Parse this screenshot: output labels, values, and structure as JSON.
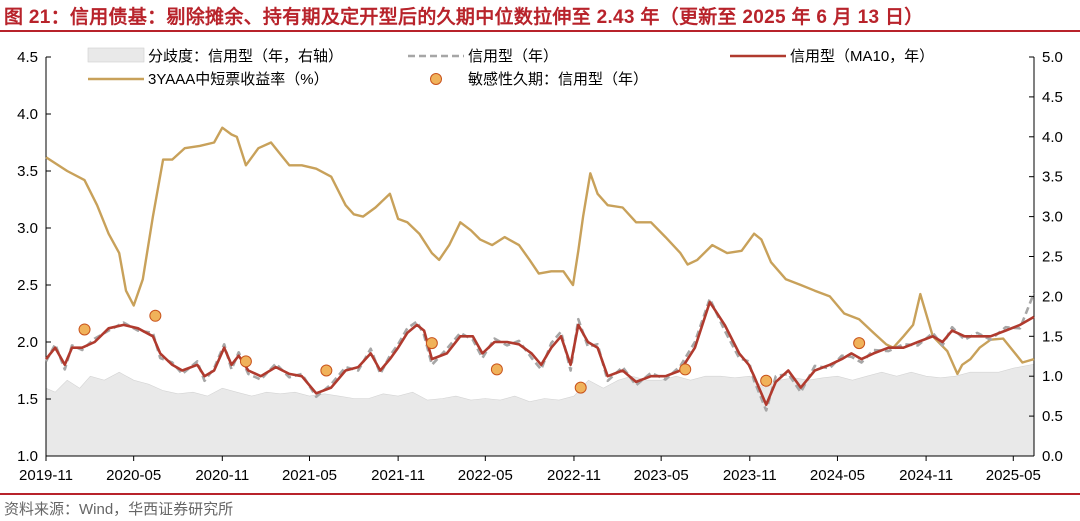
{
  "title": "图 21：信用债基：剔除摊余、持有期及定开型后的久期中位数拉伸至 2.43 年（更新至 2025 年 6 月 13 日）",
  "source": "资料来源：Wind，华西证券研究所",
  "colors": {
    "accent": "#b8232b",
    "area_fill": "#e9e9e9",
    "credit_dash": "#a6a6a6",
    "ma10": "#b03a2e",
    "yield": "#c8a15a",
    "marker_fill": "#f0b25a",
    "marker_stroke": "#c9541d"
  },
  "chart_data": {
    "type": "line",
    "x_ticks": [
      "2019-11",
      "2020-05",
      "2020-11",
      "2021-05",
      "2021-11",
      "2022-05",
      "2022-11",
      "2023-05",
      "2023-11",
      "2024-05",
      "2024-11",
      "2025-05"
    ],
    "xlim": [
      "2019-11-01",
      "2025-06-13"
    ],
    "y_left": {
      "min": 1.0,
      "max": 4.5,
      "ticks": [
        "1.0",
        "1.5",
        "2.0",
        "2.5",
        "3.0",
        "3.5",
        "4.0",
        "4.5"
      ]
    },
    "y_right": {
      "min": 0.0,
      "max": 5.0,
      "ticks": [
        "0.0",
        "0.5",
        "1.0",
        "1.5",
        "2.0",
        "2.5",
        "3.0",
        "3.5",
        "4.0",
        "4.5",
        "5.0"
      ]
    },
    "legend": [
      {
        "name": "分歧度：信用型（年，右轴）",
        "style": "area"
      },
      {
        "name": "信用型（年）",
        "style": "dashed"
      },
      {
        "name": "信用型（MA10，年）",
        "style": "line"
      },
      {
        "name": "3YAAA中短票收益率（%）",
        "style": "line"
      },
      {
        "name": "敏感性久期：信用型（年）",
        "style": "marker"
      }
    ],
    "series": [
      {
        "name": "3YAAA中短票收益率（%）",
        "axis": "left",
        "x": [
          "2019-11-01",
          "2019-12-15",
          "2020-01-20",
          "2020-02-15",
          "2020-03-10",
          "2020-04-01",
          "2020-04-15",
          "2020-05-01",
          "2020-05-20",
          "2020-06-10",
          "2020-07-01",
          "2020-07-20",
          "2020-08-15",
          "2020-09-15",
          "2020-10-15",
          "2020-11-01",
          "2020-11-20",
          "2020-12-01",
          "2020-12-20",
          "2021-01-15",
          "2021-02-10",
          "2021-03-01",
          "2021-03-20",
          "2021-04-15",
          "2021-05-15",
          "2021-06-15",
          "2021-07-15",
          "2021-08-01",
          "2021-08-20",
          "2021-09-15",
          "2021-10-15",
          "2021-11-01",
          "2021-11-20",
          "2021-12-15",
          "2022-01-10",
          "2022-01-25",
          "2022-02-15",
          "2022-03-10",
          "2022-04-01",
          "2022-04-20",
          "2022-05-15",
          "2022-06-10",
          "2022-07-10",
          "2022-08-01",
          "2022-08-20",
          "2022-09-15",
          "2022-10-10",
          "2022-10-30",
          "2022-11-10",
          "2022-11-20",
          "2022-12-05",
          "2022-12-20",
          "2023-01-10",
          "2023-02-10",
          "2023-03-10",
          "2023-04-10",
          "2023-05-10",
          "2023-06-10",
          "2023-06-25",
          "2023-07-15",
          "2023-08-15",
          "2023-09-15",
          "2023-10-15",
          "2023-11-10",
          "2023-11-25",
          "2023-12-15",
          "2024-01-15",
          "2024-02-15",
          "2024-03-15",
          "2024-04-15",
          "2024-05-15",
          "2024-06-15",
          "2024-07-15",
          "2024-08-10",
          "2024-08-25",
          "2024-09-15",
          "2024-10-05",
          "2024-10-20",
          "2024-11-15",
          "2024-12-15",
          "2025-01-05",
          "2025-01-15",
          "2025-02-01",
          "2025-02-20",
          "2025-03-15",
          "2025-04-10",
          "2025-05-01",
          "2025-05-20",
          "2025-06-13"
        ],
        "values": [
          3.62,
          3.5,
          3.42,
          3.2,
          2.95,
          2.78,
          2.45,
          2.32,
          2.55,
          3.1,
          3.6,
          3.6,
          3.7,
          3.72,
          3.75,
          3.88,
          3.82,
          3.8,
          3.55,
          3.7,
          3.75,
          3.65,
          3.55,
          3.55,
          3.52,
          3.45,
          3.2,
          3.12,
          3.1,
          3.18,
          3.3,
          3.08,
          3.05,
          2.95,
          2.78,
          2.72,
          2.85,
          3.05,
          2.98,
          2.9,
          2.85,
          2.92,
          2.85,
          2.72,
          2.6,
          2.62,
          2.62,
          2.5,
          2.8,
          3.1,
          3.48,
          3.3,
          3.2,
          3.18,
          3.05,
          3.05,
          2.92,
          2.78,
          2.68,
          2.72,
          2.85,
          2.78,
          2.8,
          2.95,
          2.9,
          2.7,
          2.55,
          2.5,
          2.45,
          2.4,
          2.25,
          2.2,
          2.08,
          1.98,
          1.95,
          2.05,
          2.15,
          2.42,
          2.05,
          1.92,
          1.72,
          1.8,
          1.85,
          1.95,
          2.02,
          2.03,
          1.92,
          1.82,
          1.85
        ]
      },
      {
        "name": "信用型（MA10，年）",
        "axis": "left",
        "x": [
          "2019-11-01",
          "2019-11-20",
          "2019-12-10",
          "2019-12-25",
          "2020-01-15",
          "2020-02-10",
          "2020-03-10",
          "2020-04-10",
          "2020-05-10",
          "2020-06-10",
          "2020-06-25",
          "2020-07-20",
          "2020-08-10",
          "2020-09-10",
          "2020-09-25",
          "2020-10-15",
          "2020-11-05",
          "2020-11-20",
          "2020-12-05",
          "2020-12-25",
          "2021-01-20",
          "2021-02-20",
          "2021-03-20",
          "2021-04-15",
          "2021-05-15",
          "2021-06-15",
          "2021-07-15",
          "2021-08-10",
          "2021-09-05",
          "2021-09-25",
          "2021-10-15",
          "2021-11-01",
          "2021-11-20",
          "2021-12-10",
          "2021-12-25",
          "2022-01-10",
          "2022-02-10",
          "2022-03-10",
          "2022-04-05",
          "2022-04-25",
          "2022-05-20",
          "2022-06-15",
          "2022-07-10",
          "2022-08-05",
          "2022-08-25",
          "2022-09-15",
          "2022-10-05",
          "2022-10-25",
          "2022-11-10",
          "2022-11-30",
          "2022-12-20",
          "2023-01-10",
          "2023-02-10",
          "2023-03-10",
          "2023-04-10",
          "2023-05-10",
          "2023-06-10",
          "2023-07-10",
          "2023-08-10",
          "2023-09-10",
          "2023-10-10",
          "2023-10-30",
          "2023-11-10",
          "2023-11-20",
          "2023-12-05",
          "2023-12-25",
          "2024-01-20",
          "2024-02-15",
          "2024-03-15",
          "2024-04-15",
          "2024-05-10",
          "2024-05-30",
          "2024-06-20",
          "2024-07-15",
          "2024-08-15",
          "2024-09-15",
          "2024-10-15",
          "2024-11-15",
          "2024-12-05",
          "2024-12-25",
          "2025-01-20",
          "2025-02-15",
          "2025-03-15",
          "2025-04-15",
          "2025-05-15",
          "2025-06-13"
        ],
        "values": [
          1.85,
          1.95,
          1.8,
          1.95,
          1.95,
          2.0,
          2.12,
          2.15,
          2.12,
          2.05,
          1.9,
          1.8,
          1.75,
          1.8,
          1.7,
          1.75,
          1.95,
          1.8,
          1.88,
          1.75,
          1.7,
          1.78,
          1.72,
          1.7,
          1.55,
          1.6,
          1.75,
          1.78,
          1.9,
          1.75,
          1.85,
          1.95,
          2.08,
          2.15,
          2.1,
          1.85,
          1.9,
          2.05,
          2.05,
          1.9,
          2.0,
          2.0,
          1.98,
          1.9,
          1.8,
          1.95,
          2.05,
          1.8,
          2.15,
          2.0,
          1.95,
          1.7,
          1.75,
          1.65,
          1.7,
          1.7,
          1.75,
          1.95,
          2.35,
          2.15,
          1.9,
          1.8,
          1.7,
          1.6,
          1.45,
          1.65,
          1.75,
          1.6,
          1.75,
          1.8,
          1.85,
          1.9,
          1.85,
          1.9,
          1.95,
          1.95,
          2.0,
          2.05,
          2.0,
          2.1,
          2.05,
          2.05,
          2.05,
          2.1,
          2.15,
          2.22
        ]
      },
      {
        "name": "信用型（年）",
        "axis": "left",
        "x": [
          "2019-11-01",
          "2019-11-20",
          "2019-12-10",
          "2019-12-25",
          "2020-01-15",
          "2020-02-10",
          "2020-03-10",
          "2020-04-10",
          "2020-05-10",
          "2020-06-10",
          "2020-06-25",
          "2020-07-20",
          "2020-08-10",
          "2020-09-10",
          "2020-09-25",
          "2020-10-15",
          "2020-11-05",
          "2020-11-20",
          "2020-12-05",
          "2020-12-25",
          "2021-01-20",
          "2021-02-20",
          "2021-03-20",
          "2021-04-15",
          "2021-05-15",
          "2021-06-15",
          "2021-07-15",
          "2021-08-10",
          "2021-09-05",
          "2021-09-25",
          "2021-10-15",
          "2021-11-01",
          "2021-11-20",
          "2021-12-10",
          "2021-12-25",
          "2022-01-10",
          "2022-02-10",
          "2022-03-10",
          "2022-04-05",
          "2022-04-25",
          "2022-05-20",
          "2022-06-15",
          "2022-07-10",
          "2022-08-05",
          "2022-08-25",
          "2022-09-15",
          "2022-10-05",
          "2022-10-25",
          "2022-11-10",
          "2022-11-30",
          "2022-12-20",
          "2023-01-10",
          "2023-02-10",
          "2023-03-10",
          "2023-04-10",
          "2023-05-10",
          "2023-06-10",
          "2023-07-10",
          "2023-08-10",
          "2023-09-10",
          "2023-10-10",
          "2023-10-30",
          "2023-11-10",
          "2023-11-20",
          "2023-12-05",
          "2023-12-25",
          "2024-01-20",
          "2024-02-15",
          "2024-03-15",
          "2024-04-15",
          "2024-05-10",
          "2024-05-30",
          "2024-06-20",
          "2024-07-15",
          "2024-08-15",
          "2024-09-15",
          "2024-10-15",
          "2024-11-15",
          "2024-12-05",
          "2024-12-25",
          "2025-01-20",
          "2025-02-15",
          "2025-03-15",
          "2025-04-15",
          "2025-05-15",
          "2025-06-13"
        ],
        "values": [
          1.83,
          1.98,
          1.76,
          1.97,
          1.93,
          2.03,
          2.1,
          2.17,
          2.1,
          2.08,
          1.86,
          1.82,
          1.72,
          1.83,
          1.66,
          1.77,
          1.98,
          1.76,
          1.91,
          1.72,
          1.67,
          1.81,
          1.69,
          1.72,
          1.52,
          1.63,
          1.78,
          1.75,
          1.94,
          1.72,
          1.88,
          1.98,
          2.12,
          2.18,
          2.06,
          1.8,
          1.94,
          2.08,
          2.02,
          1.86,
          2.03,
          1.97,
          2.01,
          1.86,
          1.76,
          1.99,
          2.09,
          1.75,
          2.2,
          1.96,
          1.98,
          1.66,
          1.78,
          1.62,
          1.73,
          1.67,
          1.79,
          2.0,
          2.38,
          2.1,
          1.86,
          1.83,
          1.66,
          1.56,
          1.4,
          1.7,
          1.72,
          1.56,
          1.79,
          1.77,
          1.88,
          1.87,
          1.82,
          1.93,
          1.92,
          1.98,
          1.97,
          2.08,
          1.97,
          2.13,
          2.02,
          2.08,
          2.02,
          2.13,
          2.12,
          2.43
        ]
      },
      {
        "name": "分歧度：信用型（年，右轴）",
        "axis": "right",
        "x": [
          "2019-11-01",
          "2019-11-20",
          "2019-12-15",
          "2020-01-10",
          "2020-02-01",
          "2020-03-01",
          "2020-04-01",
          "2020-05-01",
          "2020-06-01",
          "2020-07-01",
          "2020-08-01",
          "2020-09-01",
          "2020-10-01",
          "2020-11-01",
          "2020-12-01",
          "2021-01-01",
          "2021-02-01",
          "2021-03-01",
          "2021-04-01",
          "2021-05-01",
          "2021-06-01",
          "2021-07-01",
          "2021-08-01",
          "2021-09-01",
          "2021-10-01",
          "2021-11-01",
          "2021-12-01",
          "2022-01-01",
          "2022-02-01",
          "2022-03-01",
          "2022-04-01",
          "2022-05-01",
          "2022-06-01",
          "2022-07-01",
          "2022-08-01",
          "2022-09-01",
          "2022-10-01",
          "2022-11-01",
          "2022-12-01",
          "2023-01-01",
          "2023-02-01",
          "2023-03-01",
          "2023-04-01",
          "2023-05-01",
          "2023-06-01",
          "2023-07-01",
          "2023-08-01",
          "2023-09-01",
          "2023-10-01",
          "2023-11-01",
          "2023-12-01",
          "2024-01-01",
          "2024-02-01",
          "2024-03-01",
          "2024-04-01",
          "2024-05-01",
          "2024-06-01",
          "2024-07-01",
          "2024-08-01",
          "2024-09-01",
          "2024-10-01",
          "2024-11-01",
          "2024-12-01",
          "2025-01-01",
          "2025-02-01",
          "2025-03-01",
          "2025-04-01",
          "2025-05-01",
          "2025-06-13"
        ],
        "values": [
          0.85,
          0.8,
          0.95,
          0.85,
          1.0,
          0.95,
          1.05,
          0.95,
          0.9,
          0.82,
          0.78,
          0.8,
          0.75,
          0.85,
          0.8,
          0.75,
          0.8,
          0.78,
          0.8,
          0.75,
          0.78,
          0.75,
          0.72,
          0.72,
          0.78,
          0.75,
          0.8,
          0.7,
          0.72,
          0.75,
          0.7,
          0.72,
          0.7,
          0.75,
          0.68,
          0.72,
          0.7,
          0.75,
          0.95,
          0.85,
          0.95,
          1.0,
          0.95,
          0.95,
          1.0,
          0.95,
          1.0,
          1.0,
          0.98,
          1.0,
          0.85,
          0.95,
          0.98,
          0.95,
          0.98,
          1.0,
          0.95,
          1.0,
          1.05,
          1.0,
          1.05,
          1.0,
          0.98,
          1.0,
          1.05,
          1.05,
          1.05,
          1.1,
          1.15
        ]
      }
    ],
    "markers": {
      "name": "敏感性久期：信用型（年）",
      "axis": "left",
      "x": [
        "2020-01-20",
        "2020-06-15",
        "2020-12-20",
        "2021-06-05",
        "2022-01-10",
        "2022-05-25",
        "2022-11-15",
        "2023-06-20",
        "2023-12-05",
        "2024-06-15"
      ],
      "values": [
        2.11,
        2.23,
        1.83,
        1.75,
        1.99,
        1.76,
        1.6,
        1.76,
        1.66,
        1.99
      ]
    }
  }
}
